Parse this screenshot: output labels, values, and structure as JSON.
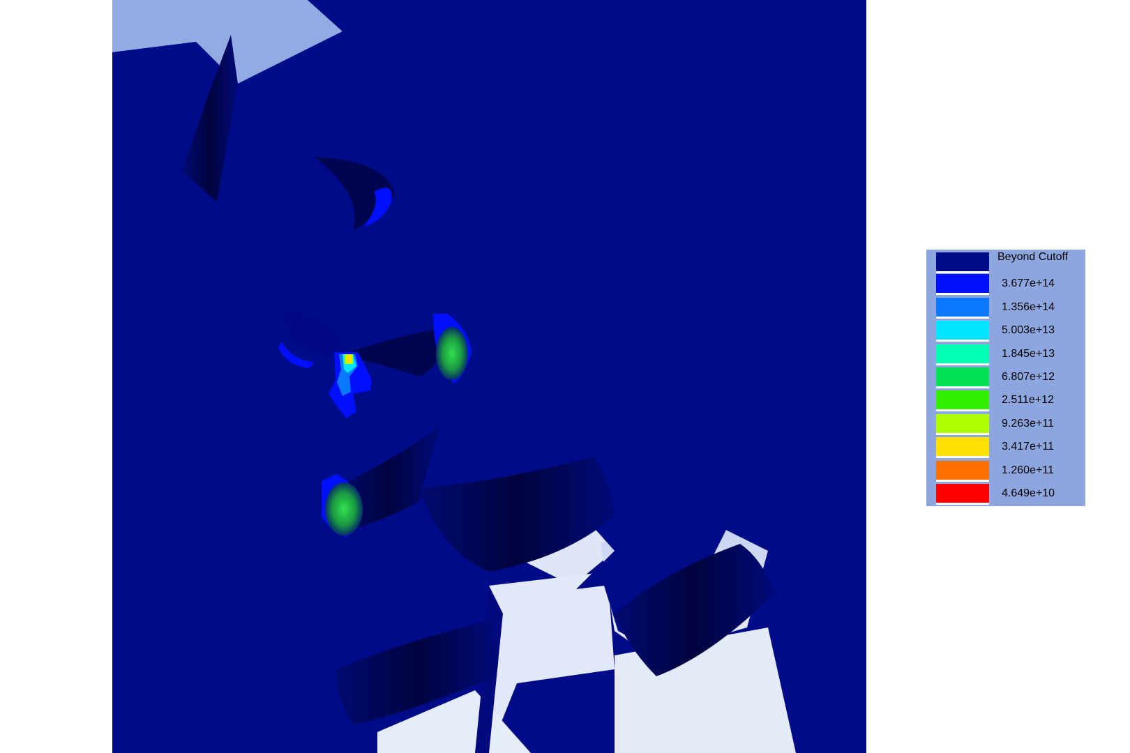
{
  "legend": {
    "entries": [
      {
        "label": "Beyond Cutoff",
        "color": "#000b8a"
      },
      {
        "label": "3.677e+14",
        "color": "#0010ff"
      },
      {
        "label": "1.356e+14",
        "color": "#0a78ff"
      },
      {
        "label": "5.003e+13",
        "color": "#00e4ff"
      },
      {
        "label": "1.845e+13",
        "color": "#00ffb0"
      },
      {
        "label": "6.807e+12",
        "color": "#00e050"
      },
      {
        "label": "2.511e+12",
        "color": "#33f000"
      },
      {
        "label": "9.263e+11",
        "color": "#b0ff00"
      },
      {
        "label": "3.417e+11",
        "color": "#ffe000"
      },
      {
        "label": "1.260e+11",
        "color": "#ff7000"
      },
      {
        "label": "4.649e+10",
        "color": "#ff0000"
      }
    ]
  },
  "colors": {
    "model_base": "#000b8a",
    "model_shadow": "#000650",
    "background_light": "#dfe6f8",
    "background_sky": "#93aae3",
    "legend_panel": "#8ea6df"
  }
}
